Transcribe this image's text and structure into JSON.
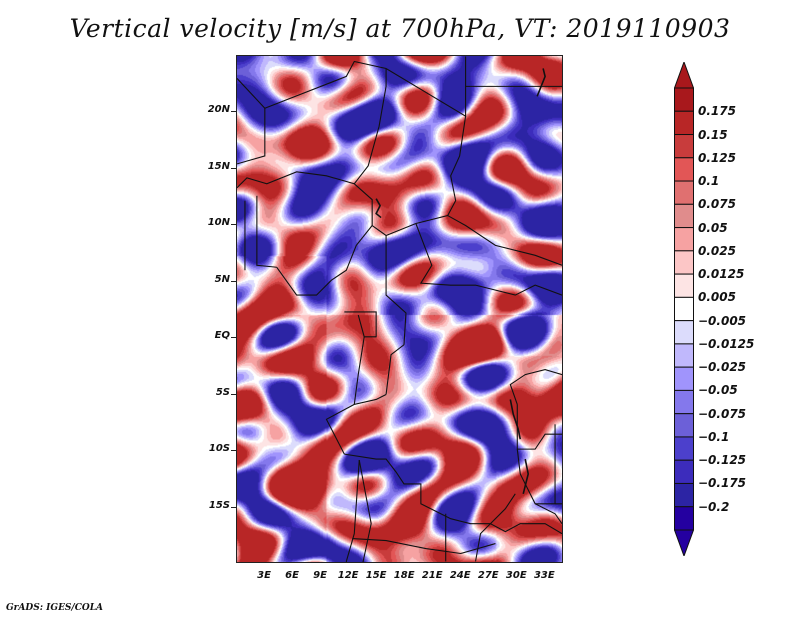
{
  "title": "Vertical velocity [m/s] at 700hPa, VT: 2019110903",
  "credit": "GrADS: IGES/COLA",
  "map": {
    "variable": "Vertical velocity",
    "units": "m/s",
    "level": "700hPa",
    "valid_time": "2019110903",
    "lon_range": [
      0,
      35
    ],
    "lat_range": [
      -20,
      25
    ],
    "y_ticks": [
      {
        "label": "20N",
        "lat": 20
      },
      {
        "label": "15N",
        "lat": 15
      },
      {
        "label": "10N",
        "lat": 10
      },
      {
        "label": "5N",
        "lat": 5
      },
      {
        "label": "EQ",
        "lat": 0
      },
      {
        "label": "5S",
        "lat": -5
      },
      {
        "label": "10S",
        "lat": -10
      },
      {
        "label": "15S",
        "lat": -15
      }
    ],
    "x_ticks": [
      {
        "label": "3E",
        "lon": 3
      },
      {
        "label": "6E",
        "lon": 6
      },
      {
        "label": "9E",
        "lon": 9
      },
      {
        "label": "12E",
        "lon": 12
      },
      {
        "label": "15E",
        "lon": 15
      },
      {
        "label": "18E",
        "lon": 18
      },
      {
        "label": "21E",
        "lon": 21
      },
      {
        "label": "24E",
        "lon": 24
      },
      {
        "label": "27E",
        "lon": 27
      },
      {
        "label": "30E",
        "lon": 30
      },
      {
        "label": "33E",
        "lon": 33
      }
    ]
  },
  "colorbar": {
    "levels": [
      "0.175",
      "0.15",
      "0.125",
      "0.1",
      "0.075",
      "0.05",
      "0.025",
      "0.0125",
      "0.005",
      "−0.005",
      "−0.0125",
      "−0.025",
      "−0.05",
      "−0.075",
      "−0.1",
      "−0.125",
      "−0.175",
      "−0.2"
    ],
    "colors": [
      "#a8181c",
      "#b82626",
      "#c83c3c",
      "#e25656",
      "#e07070",
      "#e08c8c",
      "#f6a2a2",
      "#fcc6c6",
      "#fde4e4",
      "#ffffff",
      "#dcdcfc",
      "#c0b8fc",
      "#a094fc",
      "#8478ec",
      "#6c60d8",
      "#4c40cc",
      "#3c2cbc",
      "#2c24a4",
      "#2400a0"
    ],
    "over_color": "#a8181c",
    "under_color": "#2400a0"
  }
}
